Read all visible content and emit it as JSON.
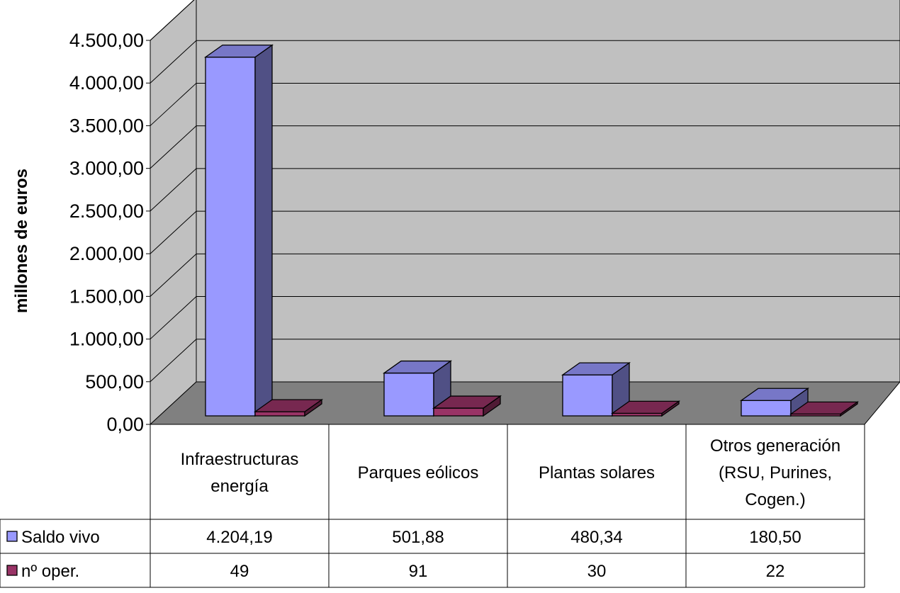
{
  "chart_data": {
    "type": "bar",
    "title": "",
    "ylabel": "millones de euros",
    "ylim": [
      0,
      4500
    ],
    "yticks": [
      "0,00",
      "500,00",
      "1.000,00",
      "1.500,00",
      "2.000,00",
      "2.500,00",
      "3.000,00",
      "3.500,00",
      "4.000,00",
      "4.500,00"
    ],
    "grid": true,
    "three_d": true,
    "categories": [
      [
        "Infraestructuras",
        "energía"
      ],
      [
        "Parques eólicos"
      ],
      [
        "Plantas solares"
      ],
      [
        "Otros generación",
        "(RSU, Purines,",
        "Cogen.)"
      ]
    ],
    "series": [
      {
        "name": "Saldo vivo",
        "values": [
          4204.19,
          501.88,
          480.34,
          180.5
        ],
        "labels": [
          "4.204,19",
          "501,88",
          "480,34",
          "180,50"
        ],
        "color": "#9999FF"
      },
      {
        "name": "nº oper.",
        "values": [
          49,
          91,
          30,
          22
        ],
        "labels": [
          "49",
          "91",
          "30",
          "22"
        ],
        "color": "#993366"
      }
    ],
    "legend_placement": "data-table-left"
  }
}
